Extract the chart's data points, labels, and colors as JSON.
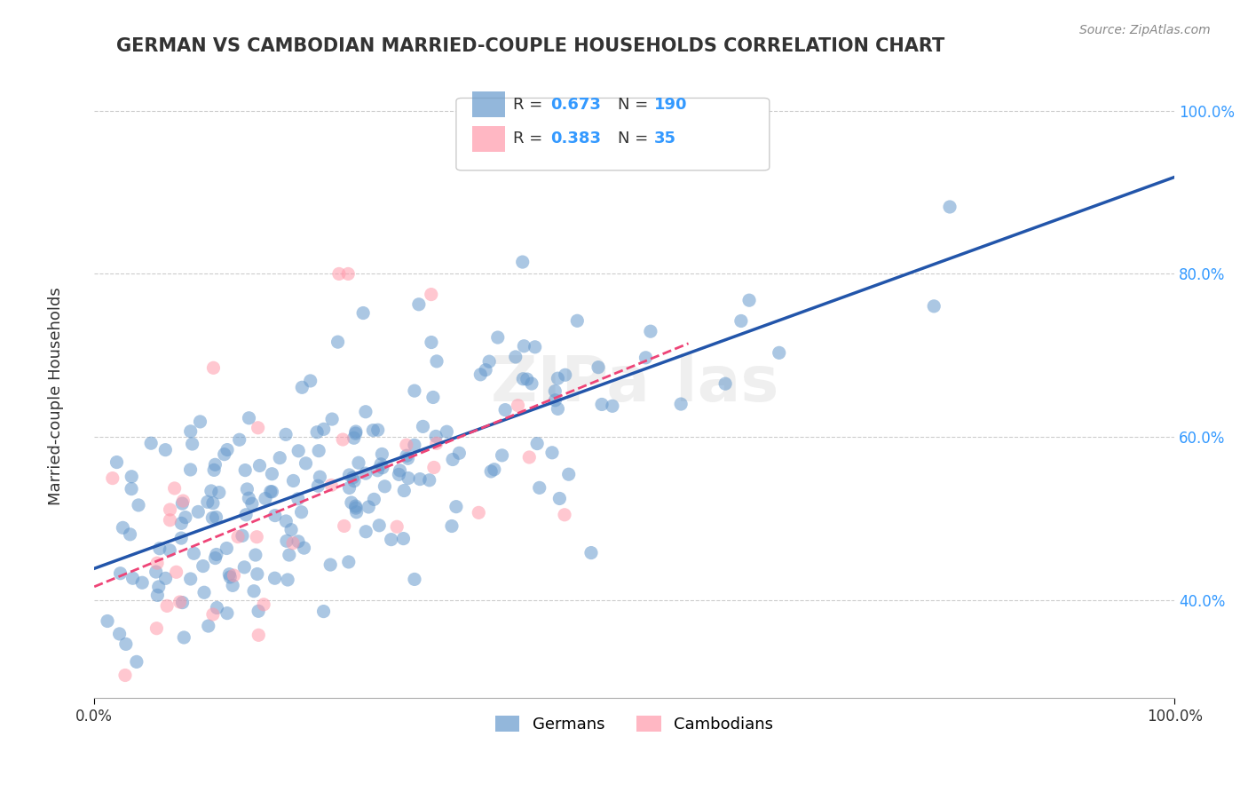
{
  "title": "GERMAN VS CAMBODIAN MARRIED-COUPLE HOUSEHOLDS CORRELATION CHART",
  "source": "Source: ZipAtlas.com",
  "ylabel": "Married-couple Households",
  "german_R": 0.673,
  "german_N": 190,
  "cambodian_R": 0.383,
  "cambodian_N": 35,
  "german_color": "#6699CC",
  "cambodian_color": "#FF99AA",
  "german_line_color": "#2255AA",
  "cambodian_line_color": "#EE4477",
  "background_color": "#FFFFFF",
  "grid_color": "#CCCCCC",
  "title_color": "#333333",
  "legend_R_N_color": "#3399FF",
  "xlim": [
    0.0,
    1.0
  ],
  "ylim": [
    0.28,
    1.05
  ],
  "yticks": [
    0.4,
    0.6,
    0.8,
    1.0
  ],
  "ytick_labels": [
    "40.0%",
    "60.0%",
    "80.0%",
    "100.0%"
  ],
  "xtick_labels": [
    "0.0%",
    "100.0%"
  ]
}
